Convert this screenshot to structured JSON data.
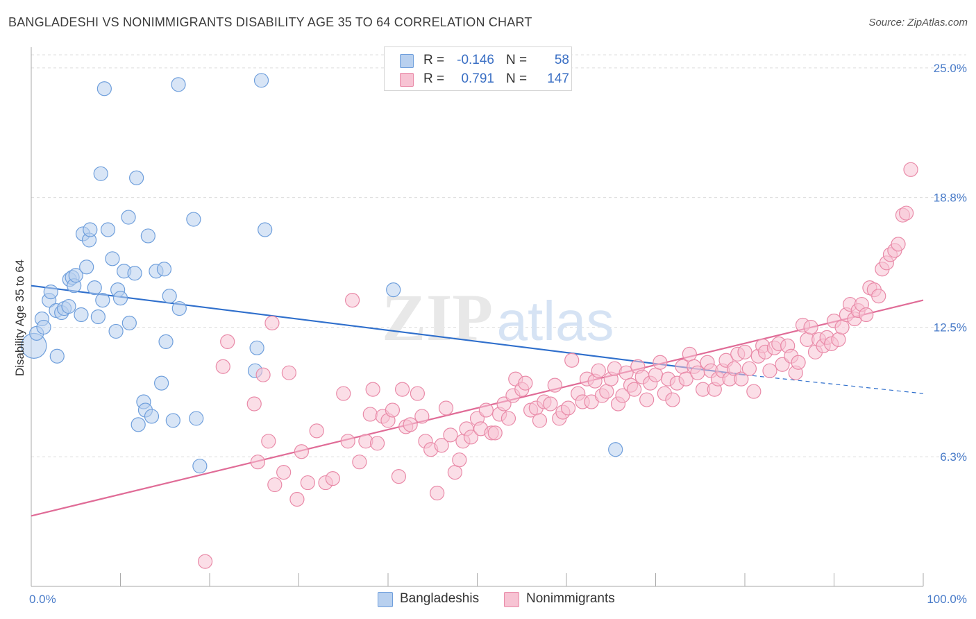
{
  "title": "BANGLADESHI VS NONIMMIGRANTS DISABILITY AGE 35 TO 64 CORRELATION CHART",
  "source": "Source: ZipAtlas.com",
  "watermark": {
    "zip": "ZIP",
    "atlas": "atlas"
  },
  "legend": {
    "rows": [
      {
        "r_label": "R =",
        "r_value": "-0.146",
        "n_label": "N =",
        "n_value": "58",
        "color": "#b8d0ef",
        "stroke": "#6f9fdc"
      },
      {
        "r_label": "R =",
        "r_value": "0.791",
        "n_label": "N =",
        "n_value": "147",
        "color": "#f7c3d3",
        "stroke": "#e98aa8"
      }
    ]
  },
  "bottom_legend": [
    {
      "label": "Bangladeshis",
      "color": "#b8d0ef",
      "stroke": "#6f9fdc"
    },
    {
      "label": "Nonimmigrants",
      "color": "#f7c3d3",
      "stroke": "#e98aa8"
    }
  ],
  "chart_data": {
    "type": "scatter",
    "title": "BANGLADESHI VS NONIMMIGRANTS DISABILITY AGE 35 TO 64 CORRELATION CHART",
    "xlabel": "",
    "ylabel": "Disability Age 35 to 64",
    "xlim": [
      0,
      100
    ],
    "ylim": [
      0,
      26
    ],
    "x_tick_labels": [
      "0.0%",
      "100.0%"
    ],
    "y_ticks": [
      6.25,
      12.5,
      18.75,
      25.0
    ],
    "y_tick_labels": [
      "6.3%",
      "12.5%",
      "18.8%",
      "25.0%"
    ],
    "grid": true,
    "legend_position": "top-center",
    "series": [
      {
        "name": "Bangladeshis",
        "color": "#6f9fdc",
        "fill": "#b8d0ef",
        "trend": {
          "x": [
            0,
            80
          ],
          "y": [
            14.5,
            10.2
          ],
          "dashed_to": [
            100,
            9.3
          ],
          "color": "#2f6fcc"
        },
        "points": [
          [
            0.3,
            11.6,
            18
          ],
          [
            0.6,
            12.2,
            10
          ],
          [
            1.2,
            12.9,
            10
          ],
          [
            1.4,
            12.5,
            10
          ],
          [
            2.0,
            13.8,
            10
          ],
          [
            2.2,
            14.2,
            10
          ],
          [
            2.8,
            13.3,
            10
          ],
          [
            2.9,
            11.1,
            10
          ],
          [
            3.4,
            13.2,
            10
          ],
          [
            3.7,
            13.4,
            10
          ],
          [
            4.2,
            13.5,
            10
          ],
          [
            4.3,
            14.8,
            10
          ],
          [
            4.6,
            14.9,
            10
          ],
          [
            4.8,
            14.5,
            10
          ],
          [
            5.0,
            15.0,
            10
          ],
          [
            5.6,
            13.1,
            10
          ],
          [
            5.8,
            17.0,
            10
          ],
          [
            6.2,
            15.4,
            10
          ],
          [
            6.5,
            16.7,
            10
          ],
          [
            6.6,
            17.2,
            10
          ],
          [
            7.1,
            14.4,
            10
          ],
          [
            7.5,
            13.0,
            10
          ],
          [
            7.8,
            19.9,
            10
          ],
          [
            8.0,
            13.8,
            10
          ],
          [
            8.2,
            24.0,
            10
          ],
          [
            8.6,
            17.2,
            10
          ],
          [
            9.1,
            15.8,
            10
          ],
          [
            9.5,
            12.3,
            10
          ],
          [
            9.7,
            14.3,
            10
          ],
          [
            10.0,
            13.9,
            10
          ],
          [
            10.4,
            15.2,
            10
          ],
          [
            10.9,
            17.8,
            10
          ],
          [
            11.0,
            12.7,
            10
          ],
          [
            11.6,
            15.1,
            10
          ],
          [
            11.8,
            19.7,
            10
          ],
          [
            12.0,
            7.8,
            10
          ],
          [
            12.6,
            8.9,
            10
          ],
          [
            12.8,
            8.5,
            10
          ],
          [
            13.1,
            16.9,
            10
          ],
          [
            13.5,
            8.2,
            10
          ],
          [
            14.0,
            15.2,
            10
          ],
          [
            14.6,
            9.8,
            10
          ],
          [
            14.9,
            15.3,
            10
          ],
          [
            15.1,
            11.8,
            10
          ],
          [
            15.5,
            14.0,
            10
          ],
          [
            15.9,
            8.0,
            10
          ],
          [
            16.5,
            24.2,
            10
          ],
          [
            16.6,
            13.4,
            10
          ],
          [
            18.2,
            17.7,
            10
          ],
          [
            18.5,
            8.1,
            10
          ],
          [
            18.9,
            5.8,
            10
          ],
          [
            25.1,
            10.4,
            10
          ],
          [
            25.3,
            11.5,
            10
          ],
          [
            25.8,
            24.4,
            10
          ],
          [
            26.2,
            17.2,
            10
          ],
          [
            40.6,
            14.3,
            10
          ],
          [
            65.5,
            6.6,
            10
          ]
        ]
      },
      {
        "name": "Nonimmigrants",
        "color": "#e98aa8",
        "fill": "#f7c3d3",
        "trend": {
          "x": [
            0,
            100
          ],
          "y": [
            3.4,
            13.8
          ],
          "color": "#e06c97"
        },
        "points": [
          [
            19.5,
            1.2,
            10
          ],
          [
            21.5,
            10.6,
            10
          ],
          [
            22.0,
            11.8,
            10
          ],
          [
            25.0,
            8.8,
            10
          ],
          [
            25.4,
            6.0,
            10
          ],
          [
            26.0,
            10.2,
            10
          ],
          [
            26.6,
            7.0,
            10
          ],
          [
            27.0,
            12.7,
            10
          ],
          [
            27.3,
            4.9,
            10
          ],
          [
            28.3,
            5.5,
            10
          ],
          [
            28.9,
            10.3,
            10
          ],
          [
            29.8,
            4.2,
            10
          ],
          [
            30.3,
            6.5,
            10
          ],
          [
            31.0,
            5.0,
            10
          ],
          [
            32.0,
            7.5,
            10
          ],
          [
            33.0,
            5.0,
            10
          ],
          [
            33.8,
            5.2,
            10
          ],
          [
            35.0,
            9.3,
            10
          ],
          [
            35.5,
            7.0,
            10
          ],
          [
            36.0,
            13.8,
            10
          ],
          [
            36.8,
            6.0,
            10
          ],
          [
            37.5,
            7.0,
            10
          ],
          [
            38.0,
            8.3,
            10
          ],
          [
            38.3,
            9.5,
            10
          ],
          [
            38.8,
            6.9,
            10
          ],
          [
            39.4,
            8.2,
            10
          ],
          [
            40.0,
            8.0,
            10
          ],
          [
            40.5,
            8.5,
            10
          ],
          [
            41.2,
            5.3,
            10
          ],
          [
            41.6,
            9.5,
            10
          ],
          [
            42.0,
            7.7,
            10
          ],
          [
            42.5,
            7.8,
            10
          ],
          [
            43.3,
            9.3,
            10
          ],
          [
            43.8,
            8.2,
            10
          ],
          [
            44.2,
            7.0,
            10
          ],
          [
            44.8,
            6.6,
            10
          ],
          [
            45.5,
            4.5,
            10
          ],
          [
            46.0,
            6.8,
            10
          ],
          [
            46.5,
            8.6,
            10
          ],
          [
            47.0,
            7.3,
            10
          ],
          [
            47.5,
            5.5,
            10
          ],
          [
            48.0,
            6.1,
            10
          ],
          [
            48.4,
            7.0,
            10
          ],
          [
            48.8,
            7.6,
            10
          ],
          [
            49.3,
            7.2,
            10
          ],
          [
            50.0,
            8.1,
            10
          ],
          [
            50.4,
            7.6,
            10
          ],
          [
            51.0,
            8.5,
            10
          ],
          [
            51.6,
            7.4,
            10
          ],
          [
            52.0,
            7.4,
            10
          ],
          [
            52.5,
            8.3,
            10
          ],
          [
            53.0,
            8.8,
            10
          ],
          [
            53.5,
            8.1,
            10
          ],
          [
            54.0,
            9.2,
            10
          ],
          [
            54.3,
            10.0,
            10
          ],
          [
            55.0,
            9.5,
            10
          ],
          [
            55.4,
            9.8,
            10
          ],
          [
            56.0,
            8.5,
            10
          ],
          [
            56.6,
            8.6,
            10
          ],
          [
            57.0,
            8.0,
            10
          ],
          [
            57.5,
            8.9,
            10
          ],
          [
            58.2,
            8.8,
            10
          ],
          [
            58.7,
            9.7,
            10
          ],
          [
            59.2,
            8.1,
            10
          ],
          [
            59.6,
            8.4,
            10
          ],
          [
            60.2,
            8.6,
            10
          ],
          [
            60.6,
            10.9,
            10
          ],
          [
            61.3,
            9.3,
            10
          ],
          [
            61.8,
            8.9,
            10
          ],
          [
            62.3,
            10.0,
            10
          ],
          [
            62.8,
            8.9,
            10
          ],
          [
            63.2,
            9.9,
            10
          ],
          [
            63.6,
            10.4,
            10
          ],
          [
            64.0,
            9.2,
            10
          ],
          [
            64.5,
            9.4,
            10
          ],
          [
            65.0,
            10.0,
            10
          ],
          [
            65.4,
            10.5,
            10
          ],
          [
            65.8,
            8.8,
            10
          ],
          [
            66.3,
            9.2,
            10
          ],
          [
            66.7,
            10.3,
            10
          ],
          [
            67.2,
            9.7,
            10
          ],
          [
            67.6,
            9.5,
            10
          ],
          [
            68.0,
            10.6,
            10
          ],
          [
            68.5,
            10.1,
            10
          ],
          [
            69.0,
            9.0,
            10
          ],
          [
            69.4,
            9.8,
            10
          ],
          [
            70.0,
            10.2,
            10
          ],
          [
            70.5,
            10.8,
            10
          ],
          [
            71.0,
            9.3,
            10
          ],
          [
            71.4,
            10.0,
            10
          ],
          [
            71.9,
            9.0,
            10
          ],
          [
            72.4,
            9.8,
            10
          ],
          [
            73.0,
            10.6,
            10
          ],
          [
            73.4,
            10.0,
            10
          ],
          [
            73.8,
            11.2,
            10
          ],
          [
            74.3,
            10.6,
            10
          ],
          [
            74.7,
            10.3,
            10
          ],
          [
            75.3,
            9.5,
            10
          ],
          [
            75.8,
            10.8,
            10
          ],
          [
            76.2,
            10.4,
            10
          ],
          [
            76.6,
            9.5,
            10
          ],
          [
            77.0,
            10.0,
            10
          ],
          [
            77.5,
            10.4,
            10
          ],
          [
            77.9,
            10.9,
            10
          ],
          [
            78.3,
            10.0,
            10
          ],
          [
            78.8,
            10.5,
            10
          ],
          [
            79.2,
            11.2,
            10
          ],
          [
            79.6,
            10.0,
            10
          ],
          [
            80.0,
            11.3,
            10
          ],
          [
            80.5,
            10.5,
            10
          ],
          [
            81.0,
            9.4,
            10
          ],
          [
            81.5,
            11.1,
            10
          ],
          [
            82.0,
            11.6,
            10
          ],
          [
            82.3,
            11.3,
            10
          ],
          [
            82.8,
            10.4,
            10
          ],
          [
            83.3,
            11.5,
            10
          ],
          [
            83.8,
            11.7,
            10
          ],
          [
            84.2,
            10.7,
            10
          ],
          [
            84.8,
            11.6,
            10
          ],
          [
            85.2,
            11.1,
            10
          ],
          [
            85.7,
            10.3,
            10
          ],
          [
            86.0,
            10.8,
            10
          ],
          [
            86.5,
            12.6,
            10
          ],
          [
            87.0,
            11.9,
            10
          ],
          [
            87.4,
            12.5,
            10
          ],
          [
            87.9,
            11.3,
            10
          ],
          [
            88.3,
            11.9,
            10
          ],
          [
            88.8,
            11.6,
            10
          ],
          [
            89.2,
            12.0,
            10
          ],
          [
            89.7,
            11.7,
            10
          ],
          [
            90.0,
            12.8,
            10
          ],
          [
            90.5,
            11.9,
            10
          ],
          [
            90.9,
            12.5,
            10
          ],
          [
            91.4,
            13.1,
            10
          ],
          [
            91.8,
            13.6,
            10
          ],
          [
            92.3,
            12.9,
            10
          ],
          [
            92.7,
            13.3,
            10
          ],
          [
            93.1,
            13.6,
            10
          ],
          [
            93.6,
            13.1,
            10
          ],
          [
            94.0,
            14.4,
            10
          ],
          [
            94.5,
            14.3,
            10
          ],
          [
            95.0,
            14.0,
            10
          ],
          [
            95.4,
            15.3,
            10
          ],
          [
            95.9,
            15.6,
            10
          ],
          [
            96.3,
            16.0,
            10
          ],
          [
            96.8,
            16.2,
            10
          ],
          [
            97.2,
            16.5,
            10
          ],
          [
            97.7,
            17.9,
            10
          ],
          [
            98.1,
            18.0,
            10
          ],
          [
            98.6,
            20.1,
            10
          ]
        ]
      }
    ]
  }
}
